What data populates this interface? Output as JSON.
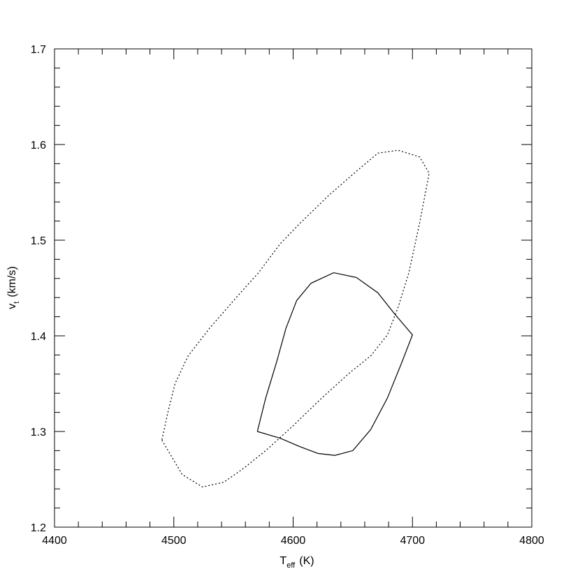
{
  "chart_data": {
    "type": "line",
    "xlabel_symbol": "T",
    "xlabel_subscript": "eff",
    "xlabel_unit": "(K)",
    "ylabel_symbol": "v",
    "ylabel_subscript": "t",
    "ylabel_unit": "(km/s)",
    "xlim": [
      4400,
      4800
    ],
    "xticks": [
      4400,
      4500,
      4600,
      4700,
      4800
    ],
    "ylim": [
      1.2,
      1.7
    ],
    "yticks": [
      1.2,
      1.3,
      1.4,
      1.5,
      1.6,
      1.7
    ],
    "series": [
      {
        "color": "#000000",
        "dash": "solid",
        "x": [
          4570,
          4577,
          4586,
          4594,
          4603,
          4615,
          4634,
          4653,
          4671,
          4685,
          4700,
          4691,
          4679,
          4665,
          4650,
          4635,
          4621,
          4606,
          4589,
          4570
        ],
        "values": [
          1.3,
          1.335,
          1.372,
          1.408,
          1.437,
          1.455,
          1.466,
          1.461,
          1.445,
          1.423,
          1.401,
          1.372,
          1.335,
          1.302,
          1.28,
          1.275,
          1.277,
          1.284,
          1.293,
          1.3
        ]
      },
      {
        "color": "#000000",
        "dash": "dotted",
        "x": [
          4490,
          4507,
          4524,
          4542,
          4559,
          4577,
          4600,
          4624,
          4647,
          4665,
          4679,
          4688,
          4697,
          4706,
          4714,
          4706,
          4688,
          4671,
          4653,
          4630,
          4606,
          4589,
          4571,
          4553,
          4530,
          4512,
          4501,
          4495,
          4490
        ],
        "values": [
          1.291,
          1.255,
          1.242,
          1.247,
          1.262,
          1.28,
          1.306,
          1.335,
          1.361,
          1.379,
          1.401,
          1.43,
          1.466,
          1.518,
          1.57,
          1.587,
          1.594,
          1.591,
          1.572,
          1.547,
          1.518,
          1.496,
          1.466,
          1.441,
          1.408,
          1.379,
          1.35,
          1.32,
          1.291
        ]
      }
    ]
  }
}
